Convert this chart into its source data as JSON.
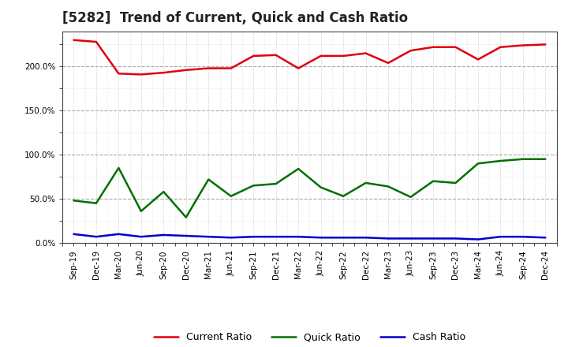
{
  "title": "[5282]  Trend of Current, Quick and Cash Ratio",
  "labels": [
    "Sep-19",
    "Dec-19",
    "Mar-20",
    "Jun-20",
    "Sep-20",
    "Dec-20",
    "Mar-21",
    "Jun-21",
    "Sep-21",
    "Dec-21",
    "Mar-22",
    "Jun-22",
    "Sep-22",
    "Dec-22",
    "Mar-23",
    "Jun-23",
    "Sep-23",
    "Dec-23",
    "Mar-24",
    "Jun-24",
    "Sep-24",
    "Dec-24"
  ],
  "current_ratio": [
    230,
    228,
    192,
    191,
    193,
    196,
    198,
    198,
    212,
    213,
    198,
    212,
    212,
    215,
    204,
    218,
    222,
    222,
    208,
    222,
    224,
    225
  ],
  "quick_ratio": [
    48,
    45,
    85,
    36,
    58,
    29,
    72,
    53,
    65,
    67,
    84,
    63,
    53,
    68,
    64,
    52,
    70,
    68,
    90,
    93,
    95,
    95
  ],
  "cash_ratio": [
    10,
    7,
    10,
    7,
    9,
    8,
    7,
    6,
    7,
    7,
    7,
    6,
    6,
    6,
    5,
    5,
    5,
    5,
    4,
    7,
    7,
    6
  ],
  "current_color": "#e00010",
  "quick_color": "#007000",
  "cash_color": "#0000cc",
  "bg_color": "#ffffff",
  "plot_bg_color": "#ffffff",
  "grid_major_color": "#888888",
  "grid_minor_color": "#bbbbbb",
  "ylim": [
    0,
    240
  ],
  "yticks": [
    0,
    50,
    100,
    150,
    200
  ],
  "ytick_labels": [
    "0.0%",
    "50.0%",
    "100.0%",
    "150.0%",
    "200.0%"
  ],
  "title_fontsize": 12,
  "tick_fontsize": 7.5,
  "legend_fontsize": 9
}
